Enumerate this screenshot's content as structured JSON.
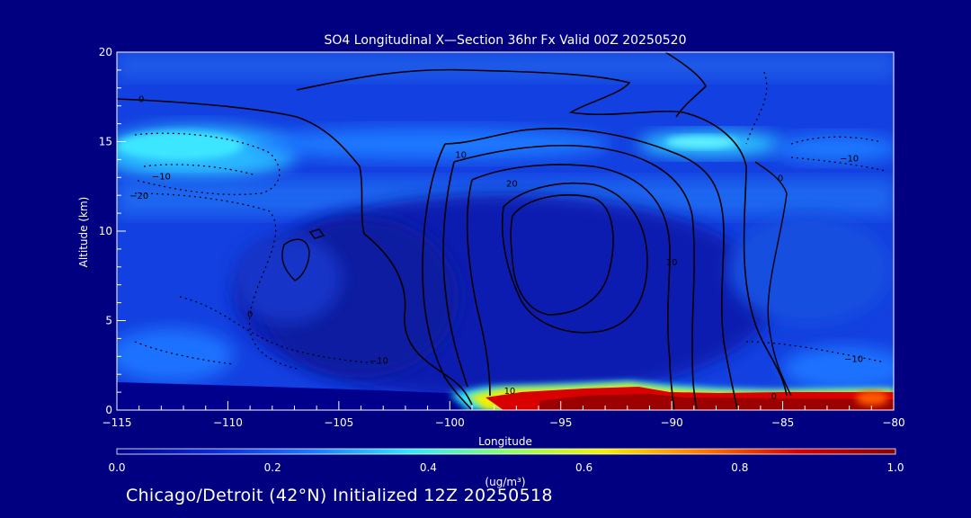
{
  "chart_data": {
    "type": "contour",
    "title": "SO4 Longitudinal X—Section 36hr  Fx Valid 00Z 20250520",
    "xlabel": "Longitude",
    "ylabel": "Altitude (km)",
    "xlim": [
      -115,
      -80
    ],
    "ylim": [
      0,
      20
    ],
    "x_ticks": [
      -115,
      -110,
      -105,
      -100,
      -95,
      -90,
      -85,
      -80
    ],
    "x_tick_labels": [
      "−115",
      "−110",
      "−105",
      "−100",
      "−95",
      "−90",
      "−85",
      "−80"
    ],
    "y_ticks": [
      0,
      5,
      10,
      15,
      20
    ],
    "y_tick_labels": [
      "0",
      "5",
      "10",
      "15",
      "20"
    ],
    "colorbar": {
      "label": "(ug/m³)",
      "min": 0.0,
      "max": 1.0,
      "ticks": [
        0.0,
        0.2,
        0.4,
        0.6,
        0.8,
        1.0
      ],
      "tick_labels": [
        "0.0",
        "0.2",
        "0.4",
        "0.6",
        "0.8",
        "1.0"
      ],
      "colors": [
        "#00008c",
        "#0a2bd6",
        "#1e78ff",
        "#2ee6ff",
        "#8cff6a",
        "#f4f000",
        "#ff7a00",
        "#d80000",
        "#8c0000"
      ]
    },
    "contour_labels": [
      {
        "text": "0",
        "lon": -113.9,
        "alt": 17.2
      },
      {
        "text": "−10",
        "lon": -113.0,
        "alt": 12.9
      },
      {
        "text": "−20",
        "lon": -114.0,
        "alt": 11.8
      },
      {
        "text": "10",
        "lon": -99.5,
        "alt": 14.1
      },
      {
        "text": "20",
        "lon": -97.2,
        "alt": 12.5
      },
      {
        "text": "10",
        "lon": -90.0,
        "alt": 8.1
      },
      {
        "text": "0",
        "lon": -85.1,
        "alt": 12.8
      },
      {
        "text": "−10",
        "lon": -82.0,
        "alt": 13.9
      },
      {
        "text": "−10",
        "lon": -81.8,
        "alt": 2.7
      },
      {
        "text": "0",
        "lon": -109.0,
        "alt": 5.2
      },
      {
        "text": "−10",
        "lon": -103.2,
        "alt": 2.6
      },
      {
        "text": "10",
        "lon": -97.3,
        "alt": 0.9
      },
      {
        "text": "0",
        "lon": -85.4,
        "alt": 0.6
      }
    ]
  },
  "caption": "Chicago/Detroit (42°N) Initialized 12Z 20250518"
}
